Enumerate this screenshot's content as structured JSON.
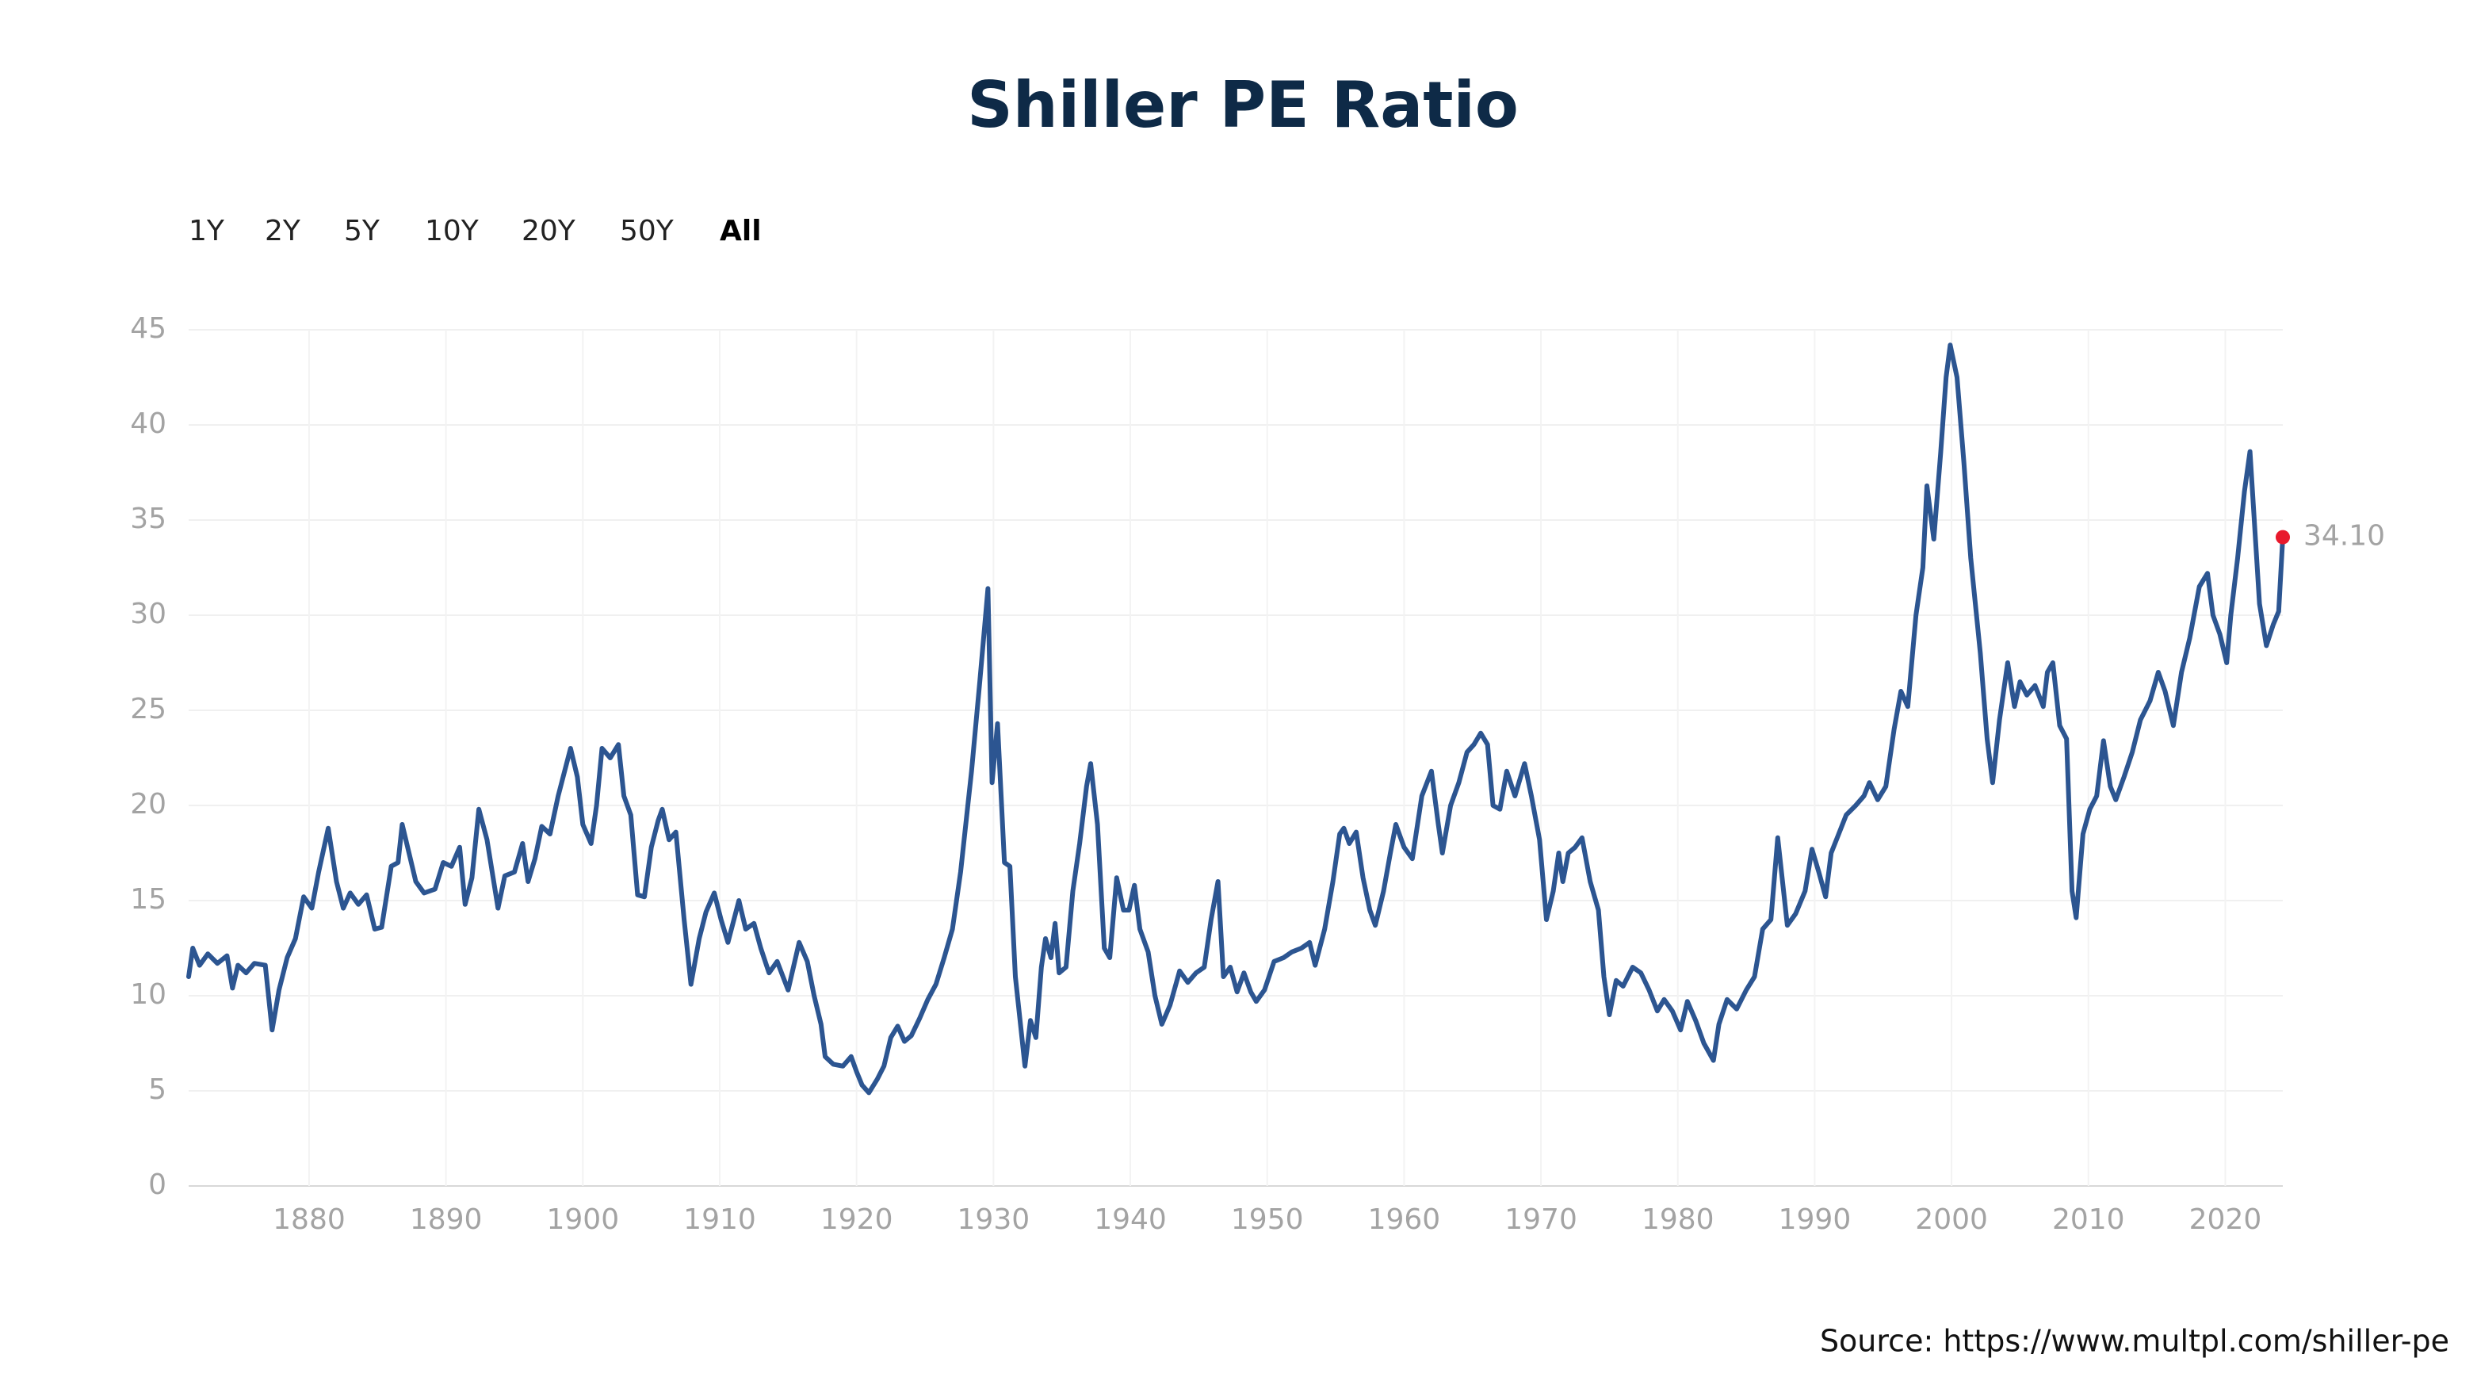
{
  "chart_data": {
    "type": "line",
    "title": "Shiller PE Ratio",
    "range_buttons": [
      "1Y",
      "2Y",
      "5Y",
      "10Y",
      "20Y",
      "50Y",
      "All"
    ],
    "active_button": "All",
    "source": "Source: https://www.multpl.com/shiller-pe",
    "color": "#2c5591",
    "grid": true,
    "xlim": [
      1871.2,
      2024.2
    ],
    "xticks": [
      1880,
      1890,
      1900,
      1910,
      1920,
      1930,
      1940,
      1950,
      1960,
      1970,
      1980,
      1990,
      2000,
      2010,
      2020
    ],
    "ylim": [
      0,
      45
    ],
    "yticks": [
      0,
      5,
      10,
      15,
      20,
      25,
      30,
      35,
      40,
      45
    ],
    "annotations": [
      {
        "x": 2024.2,
        "y": 34.1,
        "label": "34.10",
        "color": "#e8192c"
      }
    ],
    "x": [
      1871.2,
      1871.5,
      1872,
      1872.6,
      1873.3,
      1874,
      1874.4,
      1874.8,
      1875.4,
      1876,
      1876.8,
      1877.3,
      1877.8,
      1878.4,
      1879,
      1879.6,
      1880.2,
      1880.7,
      1881.4,
      1882,
      1882.5,
      1883,
      1883.6,
      1884.2,
      1884.8,
      1885.3,
      1886,
      1886.5,
      1886.8,
      1887.2,
      1887.8,
      1888.4,
      1889.2,
      1889.8,
      1890.4,
      1891,
      1891.4,
      1891.9,
      1892.4,
      1893,
      1893.8,
      1894.3,
      1895,
      1895.6,
      1896,
      1896.5,
      1897,
      1897.6,
      1898.2,
      1899.1,
      1899.6,
      1900,
      1900.6,
      1901,
      1901.4,
      1902,
      1902.6,
      1903,
      1903.5,
      1904,
      1904.5,
      1905,
      1905.5,
      1905.8,
      1906.3,
      1906.8,
      1907.4,
      1907.9,
      1908.5,
      1909,
      1909.6,
      1910.1,
      1910.6,
      1911.4,
      1911.9,
      1912.5,
      1913,
      1913.6,
      1914.2,
      1915,
      1915.8,
      1916.4,
      1916.9,
      1917.4,
      1917.7,
      1918.3,
      1919,
      1919.6,
      1920,
      1920.4,
      1920.9,
      1921.5,
      1922,
      1922.5,
      1923,
      1923.5,
      1924,
      1924.6,
      1925.2,
      1925.8,
      1926.4,
      1927,
      1927.6,
      1928.4,
      1929,
      1929.6,
      1929.9,
      1930.3,
      1930.8,
      1931.2,
      1931.6,
      1932.3,
      1932.7,
      1933.1,
      1933.5,
      1933.8,
      1934.2,
      1934.5,
      1934.8,
      1935.3,
      1935.8,
      1936.3,
      1936.8,
      1937.1,
      1937.6,
      1938.1,
      1938.5,
      1939,
      1939.5,
      1939.9,
      1940.3,
      1940.7,
      1941.3,
      1941.8,
      1942.3,
      1942.9,
      1943.6,
      1944.2,
      1944.8,
      1945.4,
      1945.9,
      1946.4,
      1946.8,
      1947.3,
      1947.8,
      1948.3,
      1948.8,
      1949.2,
      1949.8,
      1950.5,
      1951.2,
      1951.8,
      1952.5,
      1953.1,
      1953.5,
      1954.2,
      1954.8,
      1955.3,
      1955.6,
      1956,
      1956.5,
      1957,
      1957.5,
      1957.9,
      1958.5,
      1959,
      1959.4,
      1960,
      1960.6,
      1961.3,
      1962,
      1962.5,
      1962.8,
      1963.4,
      1964,
      1964.6,
      1965.1,
      1965.6,
      1966.1,
      1966.5,
      1967,
      1967.5,
      1968.1,
      1968.8,
      1969.3,
      1969.9,
      1970.4,
      1970.9,
      1971.3,
      1971.6,
      1972,
      1972.5,
      1973,
      1973.6,
      1974.2,
      1974.6,
      1975,
      1975.5,
      1976,
      1976.7,
      1977.3,
      1977.9,
      1978.5,
      1979,
      1979.6,
      1980.2,
      1980.7,
      1981.3,
      1981.9,
      1982.6,
      1983,
      1983.6,
      1984.3,
      1985,
      1985.6,
      1986.2,
      1986.8,
      1987.3,
      1988,
      1988.6,
      1989.3,
      1989.8,
      1990.3,
      1990.8,
      1991.2,
      1991.7,
      1992.3,
      1993,
      1993.6,
      1994,
      1994.6,
      1995.2,
      1995.8,
      1996.3,
      1996.8,
      1997.4,
      1997.9,
      1998.2,
      1998.7,
      1999.2,
      1999.6,
      1999.9,
      2000.4,
      2000.9,
      2001.4,
      2002.1,
      2002.6,
      2003,
      2003.5,
      2004.1,
      2004.6,
      2005,
      2005.5,
      2006.1,
      2006.7,
      2007,
      2007.4,
      2007.9,
      2008.4,
      2008.8,
      2009.1,
      2009.6,
      2010.1,
      2010.6,
      2011.1,
      2011.6,
      2012,
      2012.6,
      2013.2,
      2013.8,
      2014.5,
      2015.1,
      2015.6,
      2016.2,
      2016.8,
      2017.4,
      2018.1,
      2018.7,
      2019.1,
      2019.6,
      2020.1,
      2020.4,
      2020.9,
      2021.4,
      2021.8,
      2022.2,
      2022.5,
      2023,
      2023.5,
      2023.9,
      2024.2
    ],
    "values": [
      11,
      12.5,
      11.6,
      12.2,
      11.7,
      12.1,
      10.4,
      11.6,
      11.2,
      11.7,
      11.6,
      8.2,
      10.3,
      12,
      13,
      15.2,
      14.6,
      16.5,
      18.8,
      16,
      14.6,
      15.4,
      14.8,
      15.3,
      13.5,
      13.6,
      16.8,
      17,
      19,
      17.8,
      16,
      15.4,
      15.6,
      17,
      16.8,
      17.8,
      14.8,
      16.2,
      19.8,
      18.2,
      14.6,
      16.3,
      16.5,
      18,
      16,
      17.2,
      18.9,
      18.5,
      20.5,
      23,
      21.5,
      19,
      18,
      20,
      23,
      22.5,
      23.2,
      20.5,
      19.5,
      15.3,
      15.2,
      17.8,
      19.2,
      19.8,
      18.2,
      18.6,
      14,
      10.6,
      13,
      14.4,
      15.4,
      14,
      12.8,
      15,
      13.5,
      13.8,
      12.5,
      11.2,
      11.8,
      10.3,
      12.8,
      11.8,
      10,
      8.5,
      6.8,
      6.4,
      6.3,
      6.8,
      6,
      5.3,
      4.9,
      5.6,
      6.3,
      7.8,
      8.4,
      7.6,
      7.9,
      8.8,
      9.8,
      10.6,
      12,
      13.5,
      16.5,
      21.8,
      26.5,
      31.4,
      21.2,
      24.3,
      17,
      16.8,
      11,
      6.3,
      8.7,
      7.8,
      11.5,
      13,
      12,
      13.8,
      11.2,
      11.5,
      15.5,
      18,
      21,
      22.2,
      19,
      12.5,
      12,
      16.2,
      14.5,
      14.5,
      15.8,
      13.5,
      12.3,
      10,
      8.5,
      9.5,
      11.3,
      10.7,
      11.2,
      11.5,
      14,
      16,
      11,
      11.5,
      10.2,
      11.2,
      10.2,
      9.7,
      10.3,
      11.8,
      12,
      12.3,
      12.5,
      12.8,
      11.6,
      13.5,
      16,
      18.5,
      18.8,
      18,
      18.6,
      16.2,
      14.5,
      13.7,
      15.5,
      17.5,
      19,
      17.8,
      17.2,
      20.5,
      21.8,
      19,
      17.5,
      20,
      21.2,
      22.8,
      23.2,
      23.8,
      23.2,
      20,
      19.8,
      21.8,
      20.5,
      22.2,
      20.5,
      18.2,
      14,
      15.5,
      17.5,
      16,
      17.5,
      17.8,
      18.3,
      16,
      14.5,
      11,
      9,
      10.8,
      10.5,
      11.5,
      11.2,
      10.3,
      9.2,
      9.8,
      9.2,
      8.2,
      9.7,
      8.7,
      7.5,
      6.6,
      8.5,
      9.8,
      9.3,
      10.3,
      11,
      13.5,
      14,
      18.3,
      13.7,
      14.3,
      15.5,
      17.7,
      16.5,
      15.2,
      17.5,
      18.4,
      19.5,
      20,
      20.5,
      21.2,
      20.3,
      21,
      24,
      26,
      25.2,
      30,
      32.5,
      36.8,
      34,
      38.5,
      42.5,
      44.2,
      42.5,
      38,
      33,
      28,
      23.5,
      21.2,
      24.5,
      27.5,
      25.2,
      26.5,
      25.8,
      26.3,
      25.2,
      27,
      27.5,
      24.2,
      23.5,
      15.5,
      14.1,
      18.5,
      19.8,
      20.5,
      23.4,
      21,
      20.3,
      21.5,
      22.8,
      24.5,
      25.5,
      27,
      26,
      24.2,
      27,
      28.8,
      31.5,
      32.2,
      30,
      29,
      27.5,
      30,
      33,
      36.5,
      38.6,
      34,
      30.6,
      28.4,
      29.5,
      30.2,
      34.1
    ]
  }
}
